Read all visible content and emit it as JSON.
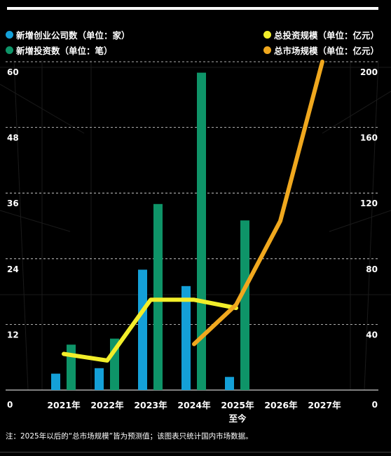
{
  "chart_data": {
    "type": "bar+line",
    "categories": [
      "2021年",
      "2022年",
      "2023年",
      "2024年",
      "2025年",
      "2026年",
      "2027年"
    ],
    "category_sublabel": {
      "index": 4,
      "text": "至今"
    },
    "left_axis": {
      "ticks": [
        "0",
        "12",
        "24",
        "36",
        "48",
        "60"
      ],
      "range": [
        0,
        60
      ]
    },
    "right_axis": {
      "ticks": [
        "0",
        "40",
        "80",
        "120",
        "160",
        "200"
      ],
      "range": [
        0,
        200
      ]
    },
    "bar_series": [
      {
        "name": "新增创业公司数（单位：家）",
        "color": "#14a0d8",
        "axis": "left",
        "values": [
          3,
          4,
          22,
          19,
          2.4,
          null,
          null
        ]
      },
      {
        "name": "新增投资数（单位：笔）",
        "color": "#0e9468",
        "axis": "left",
        "values": [
          8.3,
          9.4,
          34,
          58,
          31,
          null,
          null
        ]
      }
    ],
    "line_series": [
      {
        "name": "总投资规模（单位：亿元）",
        "color": "#f2ee2a",
        "axis": "right",
        "values": [
          22,
          18,
          55,
          55,
          50,
          null,
          null
        ]
      },
      {
        "name": "总市场规模（单位：亿元）",
        "color": "#f0a81e",
        "axis": "right",
        "values": [
          null,
          null,
          null,
          28,
          52,
          103,
          200
        ]
      }
    ],
    "grid": "dashed-horizontal",
    "legend_position": "top"
  },
  "footnote": "注：2025年以后的“总市场规模”皆为预测值；该图表只统计国内市场数据。"
}
